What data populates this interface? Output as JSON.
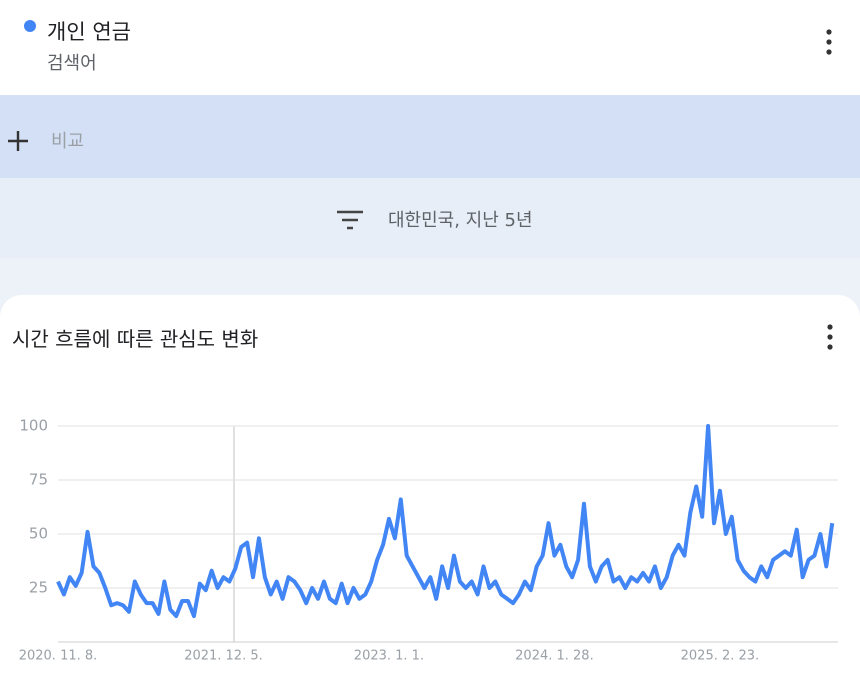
{
  "header": {
    "term": "개인 연금",
    "term_type": "검색어"
  },
  "compare": {
    "label": "비교"
  },
  "filter": {
    "label": "대한민국, 지난 5년"
  },
  "chart_data": {
    "type": "line",
    "title": "시간 흐름에 따른 관심도 변화",
    "categories": [
      "2020. 11. 8.",
      null,
      null,
      null,
      null,
      null,
      null,
      null,
      null,
      null,
      null,
      null,
      null,
      null,
      null,
      null,
      null,
      null,
      null,
      null,
      null,
      null,
      null,
      null,
      null,
      null,
      null,
      null,
      "2021. 12. 5.",
      null,
      null,
      null,
      null,
      null,
      null,
      null,
      null,
      null,
      null,
      null,
      null,
      null,
      null,
      null,
      null,
      null,
      null,
      null,
      null,
      null,
      null,
      null,
      null,
      null,
      null,
      null,
      "2023. 1. 1.",
      null,
      null,
      null,
      null,
      null,
      null,
      null,
      null,
      null,
      null,
      null,
      null,
      null,
      null,
      null,
      null,
      null,
      null,
      null,
      null,
      null,
      null,
      null,
      null,
      null,
      null,
      null,
      "2024. 1. 28.",
      null,
      null,
      null,
      null,
      null,
      null,
      null,
      null,
      null,
      null,
      null,
      null,
      null,
      null,
      null,
      null,
      null,
      null,
      null,
      null,
      null,
      null,
      null,
      null,
      null,
      null,
      null,
      "2025. 2. 23.",
      null,
      null,
      null,
      null,
      null,
      null,
      null,
      null,
      null,
      null,
      null,
      null,
      null,
      null,
      null,
      null,
      null,
      null,
      null
    ],
    "series": [
      {
        "color": "#4285f4",
        "values": [
          28,
          22,
          30,
          26,
          32,
          51,
          35,
          32,
          25,
          17,
          18,
          17,
          14,
          28,
          22,
          18,
          18,
          13,
          28,
          15,
          12,
          19,
          19,
          12,
          27,
          24,
          33,
          25,
          30,
          28,
          34,
          44,
          46,
          30,
          48,
          30,
          22,
          28,
          20,
          30,
          28,
          24,
          18,
          25,
          20,
          28,
          20,
          18,
          27,
          18,
          25,
          20,
          22,
          28,
          38,
          45,
          57,
          48,
          66,
          40,
          35,
          30,
          25,
          30,
          20,
          35,
          25,
          40,
          28,
          25,
          28,
          22,
          35,
          25,
          28,
          22,
          20,
          18,
          22,
          28,
          24,
          35,
          40,
          55,
          40,
          45,
          35,
          30,
          38,
          64,
          35,
          28,
          35,
          38,
          28,
          30,
          25,
          30,
          28,
          32,
          28,
          35,
          25,
          30,
          40,
          45,
          40,
          60,
          72,
          58,
          100,
          55,
          70,
          50,
          58,
          38,
          33,
          30,
          28,
          35,
          30,
          38,
          40,
          42,
          40,
          52,
          30,
          38,
          40,
          50,
          35,
          55
        ]
      }
    ],
    "ylim": [
      0,
      100
    ],
    "yticks": [
      25,
      50,
      75,
      100
    ],
    "grid": true
  }
}
